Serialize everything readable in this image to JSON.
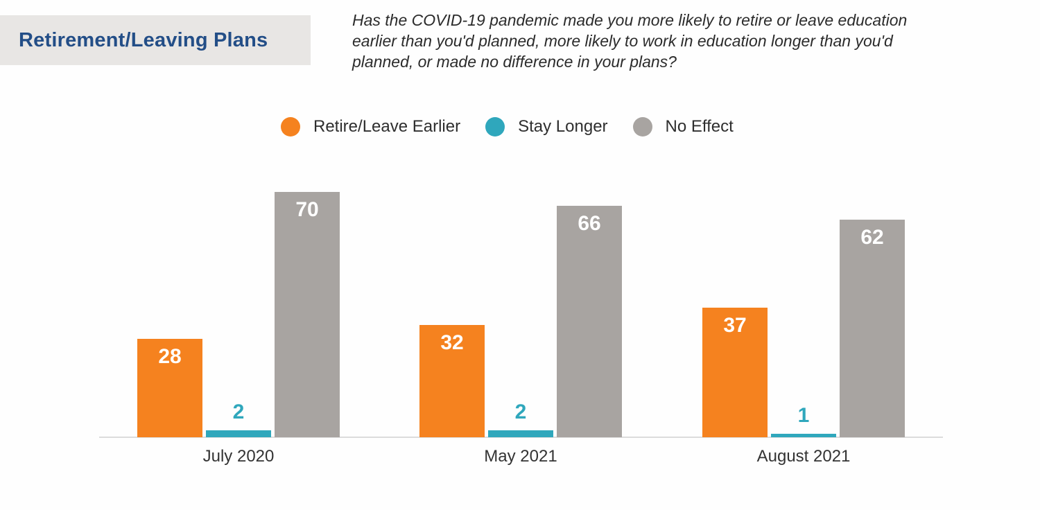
{
  "header": {
    "title": "Retirement/Leaving Plans",
    "title_color": "#234e87",
    "title_bg": "#e8e6e4",
    "question": "Has the COVID-19 pandemic made you more likely to retire or leave education earlier than you'd planned, more likely to work in education longer than you'd planned, or made no difference in your plans?",
    "question_lines": [
      "Has the COVID-19 pandemic made you more likely to retire or leave education",
      "earlier than you'd planned, more likely to work in education longer than you'd",
      "planned, or made no difference in your plans?"
    ]
  },
  "chart_data": {
    "type": "bar",
    "title": "",
    "xlabel": "",
    "ylabel": "",
    "categories": [
      "July 2020",
      "May 2021",
      "August 2021"
    ],
    "series": [
      {
        "name": "Retire/Leave Earlier",
        "color": "#f5821f",
        "values": [
          28,
          32,
          37
        ]
      },
      {
        "name": "Stay Longer",
        "color": "#2fa7bc",
        "values": [
          2,
          2,
          1
        ]
      },
      {
        "name": "No Effect",
        "color": "#a8a4a1",
        "values": [
          70,
          66,
          62
        ]
      }
    ],
    "ylim": [
      0,
      79
    ],
    "grid": false,
    "y_axis_visible": false,
    "legend_position": "top",
    "value_labels": true,
    "axis_line_color": "#dcdcdc"
  }
}
